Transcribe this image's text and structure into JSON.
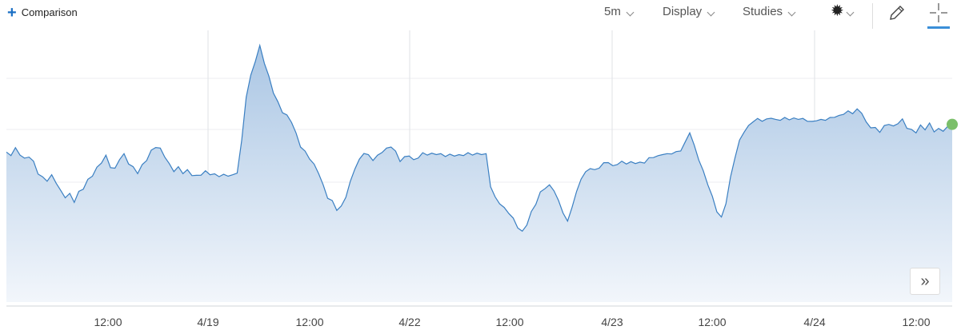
{
  "toolbar": {
    "comparison_label": "Comparison",
    "interval_label": "5m",
    "display_label": "Display",
    "studies_label": "Studies",
    "settings_icon": "gear-icon",
    "draw_icon": "pencil-icon",
    "crosshair_icon": "crosshair-icon"
  },
  "scroll_button": {
    "label": "»",
    "icon": "double-chevron-right-icon"
  },
  "colors": {
    "line": "#3a7fc2",
    "fill_top": "#aac6e4",
    "fill_bottom": "#f2f6fb",
    "accent": "#1a6fc4",
    "last_point": "#7bbf6a"
  },
  "chart_data": {
    "type": "area",
    "x_tick_labels": [
      "12:00",
      "4/19",
      "12:00",
      "4/22",
      "12:00",
      "4/23",
      "12:00",
      "4/24",
      "12:00"
    ],
    "grid": true,
    "y_axis_labels_visible": false,
    "series": [
      {
        "values": [
          0.58,
          0.57,
          0.59,
          0.57,
          0.55,
          0.56,
          0.54,
          0.5,
          0.48,
          0.47,
          0.49,
          0.46,
          0.42,
          0.4,
          0.41,
          0.38,
          0.42,
          0.44,
          0.47,
          0.49,
          0.52,
          0.54,
          0.56,
          0.52,
          0.51,
          0.55,
          0.57,
          0.54,
          0.52,
          0.5,
          0.53,
          0.55,
          0.58,
          0.6,
          0.59,
          0.56,
          0.53,
          0.51,
          0.52,
          0.5,
          0.51,
          0.49,
          0.48,
          0.49,
          0.5,
          0.49,
          0.49,
          0.49,
          0.49,
          0.49,
          0.49,
          0.5,
          0.62,
          0.8,
          0.88,
          0.94,
          1.0,
          0.94,
          0.88,
          0.82,
          0.78,
          0.74,
          0.72,
          0.7,
          0.65,
          0.6,
          0.58,
          0.56,
          0.53,
          0.5,
          0.45,
          0.4,
          0.38,
          0.35,
          0.36,
          0.4,
          0.46,
          0.52,
          0.55,
          0.58,
          0.57,
          0.55,
          0.56,
          0.58,
          0.59,
          0.6,
          0.58,
          0.55,
          0.56,
          0.57,
          0.55,
          0.56,
          0.57,
          0.57,
          0.57,
          0.57,
          0.57,
          0.57,
          0.57,
          0.57,
          0.57,
          0.57,
          0.57,
          0.57,
          0.57,
          0.57,
          0.57,
          0.45,
          0.4,
          0.38,
          0.36,
          0.34,
          0.31,
          0.28,
          0.26,
          0.29,
          0.34,
          0.38,
          0.42,
          0.44,
          0.45,
          0.43,
          0.38,
          0.34,
          0.3,
          0.36,
          0.42,
          0.48,
          0.5,
          0.52,
          0.51,
          0.52,
          0.53,
          0.54,
          0.52,
          0.53,
          0.54,
          0.54,
          0.54,
          0.54,
          0.54,
          0.54,
          0.55,
          0.56,
          0.56,
          0.57,
          0.57,
          0.58,
          0.58,
          0.59,
          0.62,
          0.66,
          0.6,
          0.55,
          0.5,
          0.45,
          0.4,
          0.35,
          0.32,
          0.38,
          0.48,
          0.56,
          0.62,
          0.66,
          0.68,
          0.7,
          0.71,
          0.71,
          0.71,
          0.72,
          0.71,
          0.71,
          0.71,
          0.71,
          0.71,
          0.71,
          0.71,
          0.71,
          0.7,
          0.71,
          0.71,
          0.71,
          0.71,
          0.72,
          0.72,
          0.73,
          0.74,
          0.74,
          0.75,
          0.74,
          0.7,
          0.68,
          0.67,
          0.66,
          0.68,
          0.69,
          0.68,
          0.7,
          0.71,
          0.68,
          0.67,
          0.66,
          0.68,
          0.67,
          0.69,
          0.66,
          0.67,
          0.67,
          0.68,
          0.69
        ]
      }
    ]
  }
}
